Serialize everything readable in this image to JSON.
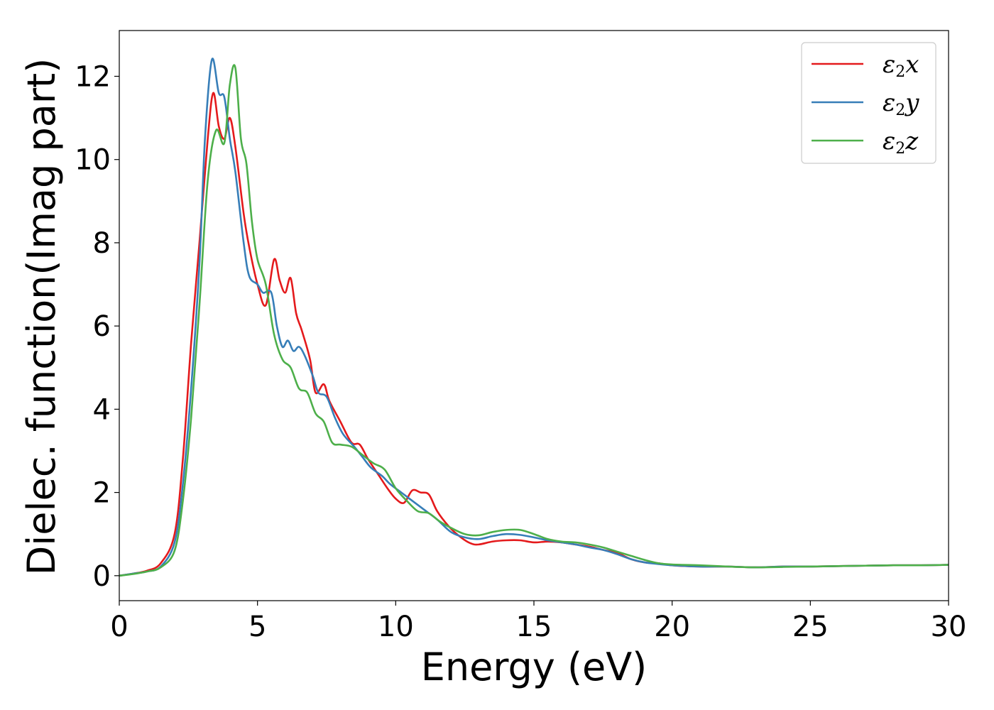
{
  "chart_data": {
    "type": "line",
    "xlabel": "Energy (eV)",
    "ylabel": "Dielec. function(Imag part)",
    "xlim": [
      0,
      30
    ],
    "ylim": [
      -0.6,
      13.1
    ],
    "xticks": [
      0,
      5,
      10,
      15,
      20,
      25,
      30
    ],
    "yticks": [
      0,
      2,
      4,
      6,
      8,
      10,
      12
    ],
    "grid": false,
    "legend": {
      "placement": "top-right"
    },
    "series": [
      {
        "name": "ε2x",
        "label_main": "ε",
        "label_sub": "2",
        "label_tail": "x",
        "color": "#e41a1c",
        "x": [
          0,
          0.5,
          1.0,
          1.5,
          2.0,
          2.3,
          2.6,
          2.9,
          3.2,
          3.4,
          3.6,
          3.8,
          4.0,
          4.2,
          4.5,
          4.7,
          5.0,
          5.3,
          5.6,
          5.8,
          6.0,
          6.2,
          6.4,
          6.6,
          6.9,
          7.1,
          7.4,
          7.6,
          8.0,
          8.4,
          8.7,
          9.0,
          9.4,
          9.7,
          10.0,
          10.3,
          10.6,
          10.9,
          11.2,
          11.5,
          11.9,
          12.3,
          12.7,
          13.0,
          13.5,
          14.0,
          14.5,
          15.0,
          15.5,
          16.0,
          16.5,
          17.0,
          17.5,
          18.0,
          18.5,
          19.0,
          19.5,
          20.0,
          21.0,
          22.0,
          23.0,
          24.0,
          25.0,
          26.0,
          27.0,
          28.0,
          29.0,
          30.0
        ],
        "y": [
          0.0,
          0.05,
          0.12,
          0.3,
          1.0,
          2.8,
          5.6,
          8.0,
          10.5,
          11.6,
          10.8,
          10.5,
          11.0,
          10.3,
          8.7,
          7.9,
          7.0,
          6.5,
          7.6,
          7.1,
          6.8,
          7.15,
          6.3,
          5.9,
          5.2,
          4.4,
          4.6,
          4.2,
          3.7,
          3.2,
          3.15,
          2.8,
          2.4,
          2.1,
          1.85,
          1.75,
          2.05,
          2.0,
          1.95,
          1.55,
          1.2,
          0.95,
          0.78,
          0.75,
          0.82,
          0.85,
          0.85,
          0.8,
          0.82,
          0.8,
          0.75,
          0.7,
          0.62,
          0.55,
          0.4,
          0.32,
          0.3,
          0.25,
          0.22,
          0.22,
          0.2,
          0.22,
          0.22,
          0.23,
          0.24,
          0.25,
          0.25,
          0.26
        ]
      },
      {
        "name": "ε2y",
        "label_main": "ε",
        "label_sub": "2",
        "label_tail": "y",
        "color": "#377eb8",
        "x": [
          0,
          0.5,
          1.0,
          1.5,
          2.0,
          2.3,
          2.6,
          2.9,
          3.1,
          3.35,
          3.6,
          3.8,
          4.0,
          4.2,
          4.5,
          4.7,
          5.0,
          5.2,
          5.5,
          5.7,
          5.9,
          6.1,
          6.3,
          6.5,
          6.7,
          7.0,
          7.2,
          7.5,
          7.8,
          8.1,
          8.5,
          8.8,
          9.1,
          9.5,
          9.8,
          10.2,
          10.5,
          11.0,
          11.5,
          12.0,
          12.5,
          13.0,
          13.5,
          14.0,
          14.5,
          15.0,
          15.5,
          16.0,
          16.5,
          17.0,
          17.5,
          18.0,
          18.5,
          19.0,
          19.5,
          20.0,
          21.0,
          22.0,
          23.0,
          24.0,
          25.0,
          26.0,
          27.0,
          28.0,
          29.0,
          30.0
        ],
        "y": [
          0.0,
          0.05,
          0.1,
          0.22,
          0.8,
          2.2,
          4.5,
          7.5,
          10.5,
          12.4,
          11.6,
          11.5,
          10.5,
          9.7,
          8.0,
          7.2,
          7.0,
          6.8,
          6.8,
          6.0,
          5.5,
          5.65,
          5.4,
          5.5,
          5.3,
          4.8,
          4.4,
          4.3,
          3.8,
          3.4,
          3.1,
          2.85,
          2.6,
          2.4,
          2.2,
          2.0,
          1.85,
          1.6,
          1.35,
          1.05,
          0.92,
          0.88,
          0.95,
          1.0,
          0.98,
          0.92,
          0.85,
          0.8,
          0.75,
          0.68,
          0.62,
          0.52,
          0.4,
          0.32,
          0.28,
          0.25,
          0.22,
          0.22,
          0.2,
          0.22,
          0.22,
          0.23,
          0.24,
          0.25,
          0.25,
          0.26
        ]
      },
      {
        "name": "ε2z",
        "label_main": "ε",
        "label_sub": "2",
        "label_tail": "z",
        "color": "#4daf4a",
        "x": [
          0,
          0.5,
          1.0,
          1.5,
          2.0,
          2.3,
          2.6,
          2.9,
          3.2,
          3.5,
          3.8,
          4.0,
          4.2,
          4.4,
          4.6,
          4.8,
          5.0,
          5.3,
          5.6,
          5.9,
          6.2,
          6.5,
          6.8,
          7.1,
          7.4,
          7.7,
          8.0,
          8.4,
          8.8,
          9.2,
          9.6,
          10.0,
          10.4,
          10.8,
          11.2,
          11.6,
          12.0,
          12.5,
          13.0,
          13.5,
          14.0,
          14.5,
          15.0,
          15.5,
          16.0,
          16.5,
          17.0,
          17.5,
          18.0,
          18.5,
          19.0,
          19.5,
          20.0,
          21.0,
          22.0,
          23.0,
          24.0,
          25.0,
          26.0,
          27.0,
          28.0,
          29.0,
          30.0
        ],
        "y": [
          0.0,
          0.04,
          0.1,
          0.2,
          0.6,
          1.8,
          3.8,
          6.5,
          9.5,
          10.7,
          10.4,
          11.8,
          12.2,
          10.5,
          9.9,
          8.5,
          7.6,
          7.0,
          5.8,
          5.2,
          5.0,
          4.5,
          4.4,
          3.9,
          3.7,
          3.2,
          3.15,
          3.1,
          2.9,
          2.7,
          2.55,
          2.1,
          1.8,
          1.55,
          1.5,
          1.3,
          1.15,
          1.0,
          0.97,
          1.05,
          1.1,
          1.1,
          1.0,
          0.88,
          0.82,
          0.8,
          0.75,
          0.68,
          0.58,
          0.48,
          0.38,
          0.3,
          0.27,
          0.25,
          0.22,
          0.2,
          0.21,
          0.22,
          0.23,
          0.24,
          0.25,
          0.25,
          0.26
        ]
      }
    ]
  }
}
